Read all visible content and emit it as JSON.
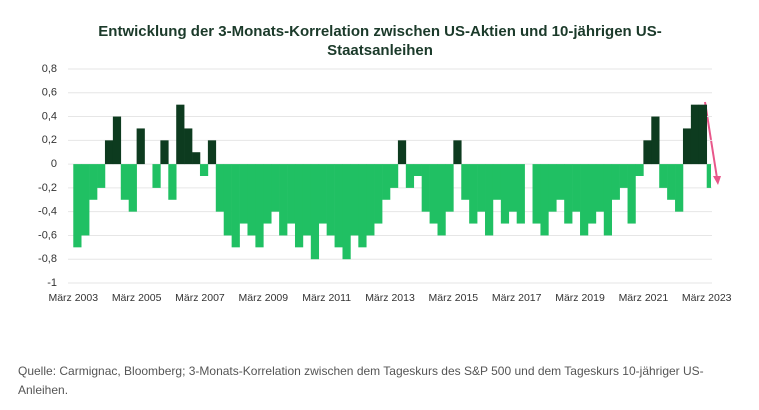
{
  "chart_data": {
    "type": "area",
    "title": "Entwicklung der 3-Monats-Korrelation zwischen US-Aktien und 10-jährigen US-Staatsanleihen",
    "x": [
      "2003-03",
      "2003-06",
      "2003-09",
      "2003-12",
      "2004-03",
      "2004-06",
      "2004-09",
      "2004-12",
      "2005-03",
      "2005-06",
      "2005-09",
      "2005-12",
      "2006-03",
      "2006-06",
      "2006-09",
      "2006-12",
      "2007-03",
      "2007-06",
      "2007-09",
      "2007-12",
      "2008-03",
      "2008-06",
      "2008-09",
      "2008-12",
      "2009-03",
      "2009-06",
      "2009-09",
      "2009-12",
      "2010-03",
      "2010-06",
      "2010-09",
      "2010-12",
      "2011-03",
      "2011-06",
      "2011-09",
      "2011-12",
      "2012-03",
      "2012-06",
      "2012-09",
      "2012-12",
      "2013-03",
      "2013-06",
      "2013-09",
      "2013-12",
      "2014-03",
      "2014-06",
      "2014-09",
      "2014-12",
      "2015-03",
      "2015-06",
      "2015-09",
      "2015-12",
      "2016-03",
      "2016-06",
      "2016-09",
      "2016-12",
      "2017-03",
      "2017-06",
      "2017-09",
      "2017-12",
      "2018-03",
      "2018-06",
      "2018-09",
      "2018-12",
      "2019-03",
      "2019-06",
      "2019-09",
      "2019-12",
      "2020-03",
      "2020-06",
      "2020-09",
      "2020-12",
      "2021-03",
      "2021-06",
      "2021-09",
      "2021-12",
      "2022-03",
      "2022-06",
      "2022-09",
      "2022-12",
      "2023-03"
    ],
    "values": [
      -0.7,
      -0.6,
      -0.3,
      -0.2,
      0.2,
      0.4,
      -0.3,
      -0.4,
      0.3,
      0.0,
      -0.2,
      0.2,
      -0.3,
      0.5,
      0.3,
      0.1,
      -0.1,
      0.2,
      -0.4,
      -0.6,
      -0.7,
      -0.5,
      -0.6,
      -0.7,
      -0.5,
      -0.4,
      -0.6,
      -0.5,
      -0.7,
      -0.6,
      -0.8,
      -0.5,
      -0.6,
      -0.7,
      -0.8,
      -0.6,
      -0.7,
      -0.6,
      -0.5,
      -0.3,
      -0.2,
      0.2,
      -0.2,
      -0.1,
      -0.4,
      -0.5,
      -0.6,
      -0.4,
      0.2,
      -0.3,
      -0.5,
      -0.4,
      -0.6,
      -0.3,
      -0.5,
      -0.4,
      -0.5,
      0.0,
      -0.5,
      -0.6,
      -0.4,
      -0.3,
      -0.5,
      -0.4,
      -0.6,
      -0.5,
      -0.4,
      -0.6,
      -0.3,
      -0.2,
      -0.5,
      -0.1,
      0.2,
      0.4,
      -0.2,
      -0.3,
      -0.4,
      0.3,
      0.5,
      0.5,
      -0.2
    ],
    "positive_color": "#0d3b1f",
    "negative_color": "#20c063",
    "xlim": [
      "2003-01",
      "2023-05"
    ],
    "xticks": [
      {
        "value": "2003-03",
        "label": "März 2003"
      },
      {
        "value": "2005-03",
        "label": "März 2005"
      },
      {
        "value": "2007-03",
        "label": "März 2007"
      },
      {
        "value": "2009-03",
        "label": "März 2009"
      },
      {
        "value": "2011-03",
        "label": "März 2011"
      },
      {
        "value": "2013-03",
        "label": "März 2013"
      },
      {
        "value": "2015-03",
        "label": "März 2015"
      },
      {
        "value": "2017-03",
        "label": "März 2017"
      },
      {
        "value": "2019-03",
        "label": "März 2019"
      },
      {
        "value": "2021-03",
        "label": "März 2021"
      },
      {
        "value": "2023-03",
        "label": "März 2023"
      }
    ],
    "ylim": [
      -1,
      0.8
    ],
    "yticks": [
      {
        "value": 0.8,
        "label": "0,8"
      },
      {
        "value": 0.6,
        "label": "0,6"
      },
      {
        "value": 0.4,
        "label": "0,4"
      },
      {
        "value": 0.2,
        "label": "0,2"
      },
      0,
      {
        "value": -0.2,
        "label": "-0,2"
      },
      {
        "value": -0.4,
        "label": "-0,4"
      },
      {
        "value": -0.6,
        "label": "-0,6"
      },
      {
        "value": -0.8,
        "label": "-0,8"
      },
      -1
    ],
    "grid": true,
    "source": "Quelle: Carmignac, Bloomberg; 3-Monats-Korrelation zwischen dem Tageskurs des S&P 500 und dem Tageskurs 10-jähriger US-Anleihen."
  }
}
